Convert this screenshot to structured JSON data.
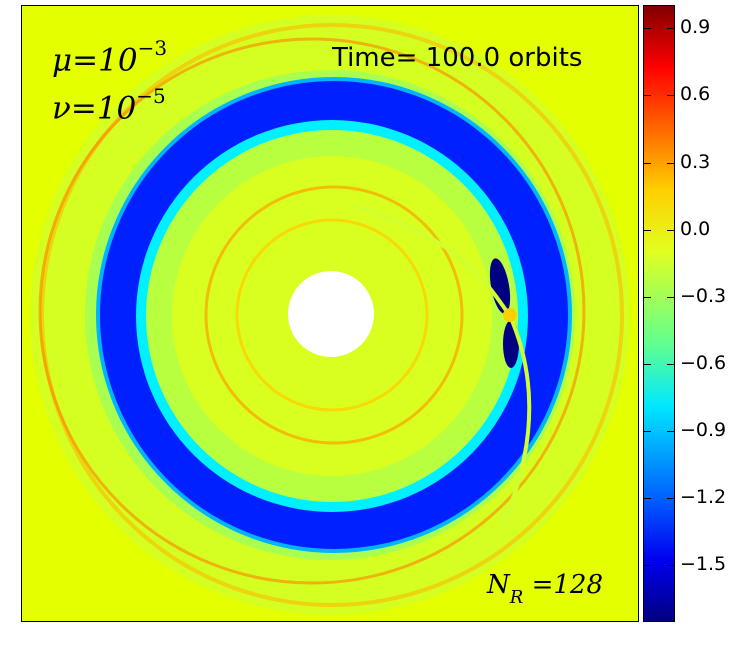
{
  "chart_data": {
    "type": "heatmap",
    "title": "Time= 100.0 orbits",
    "time_prefix": "Time=",
    "time_value": "100.0",
    "time_unit": "orbits",
    "annotations": {
      "mu_symbol": "μ",
      "mu_eq": "=10",
      "mu_exp": "−3",
      "nu_symbol": "ν",
      "nu_eq": "=10",
      "nu_exp": "−5",
      "nr_symbol": "N",
      "nr_sub": "R",
      "nr_eq": "=128"
    },
    "colormap": "jet",
    "colorbar": {
      "vmin": -1.75,
      "vmax": 1.0,
      "ticks": [
        0.9,
        0.6,
        0.3,
        0.0,
        -0.3,
        -0.6,
        -0.9,
        -1.2,
        -1.5
      ],
      "tick_labels": [
        "0.9",
        "0.6",
        "0.3",
        "0.0",
        "−0.3",
        "−0.6",
        "−0.9",
        "−1.2",
        "−1.5"
      ]
    },
    "grid": false
  }
}
